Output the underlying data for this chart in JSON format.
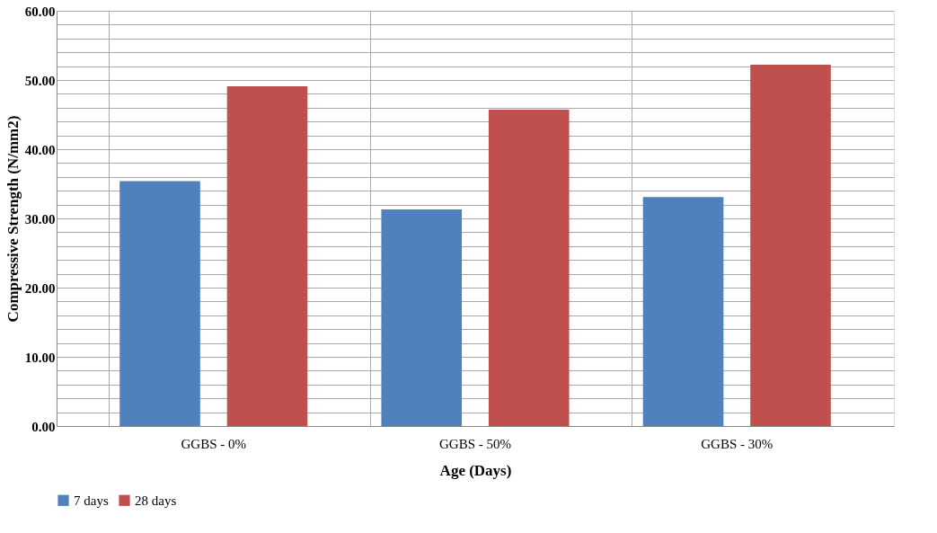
{
  "chart_data": {
    "type": "bar",
    "xlabel": "Age (Days)",
    "ylabel": "Compressive Strength (N/mm2)",
    "categories": [
      "GGBS - 0%",
      "GGBS - 50%",
      "GGBS - 30%"
    ],
    "series": [
      {
        "name": "7 days",
        "color": "#4f81bd",
        "values": [
          35.4,
          31.3,
          33.1
        ]
      },
      {
        "name": "28 days",
        "color": "#c0504d",
        "values": [
          49.1,
          45.7,
          52.2
        ]
      }
    ],
    "ylim": [
      0,
      60
    ],
    "yticks": [
      {
        "value": 0,
        "label": "0.00"
      },
      {
        "value": 2,
        "label": null
      },
      {
        "value": 4,
        "label": null
      },
      {
        "value": 6,
        "label": null
      },
      {
        "value": 8,
        "label": null
      },
      {
        "value": 10,
        "label": "10.00"
      },
      {
        "value": 12,
        "label": null
      },
      {
        "value": 14,
        "label": null
      },
      {
        "value": 16,
        "label": null
      },
      {
        "value": 18,
        "label": null
      },
      {
        "value": 20,
        "label": "20.00"
      },
      {
        "value": 22,
        "label": null
      },
      {
        "value": 24,
        "label": null
      },
      {
        "value": 26,
        "label": null
      },
      {
        "value": 28,
        "label": null
      },
      {
        "value": 30,
        "label": "30.00"
      },
      {
        "value": 32,
        "label": null
      },
      {
        "value": 34,
        "label": null
      },
      {
        "value": 36,
        "label": null
      },
      {
        "value": 38,
        "label": null
      },
      {
        "value": 40,
        "label": "40.00"
      },
      {
        "value": 42,
        "label": null
      },
      {
        "value": 44,
        "label": null
      },
      {
        "value": 46,
        "label": null
      },
      {
        "value": 48,
        "label": null
      },
      {
        "value": 50,
        "label": "50.00"
      },
      {
        "value": 52,
        "label": null
      },
      {
        "value": 54,
        "label": null
      },
      {
        "value": 56,
        "label": null
      },
      {
        "value": 58,
        "label": null
      },
      {
        "value": 60,
        "label": "60.00"
      }
    ],
    "grid": true,
    "legend": "bottom"
  }
}
